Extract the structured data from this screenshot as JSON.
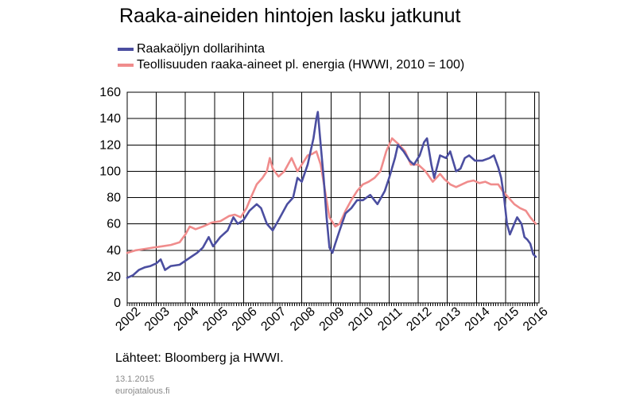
{
  "header": {
    "title": "Raaka-aineiden hintojen lasku jatkunut"
  },
  "legend": {
    "items": [
      {
        "label": "Raakaöljyn dollarihinta",
        "color": "#4b4ea0"
      },
      {
        "label": "Teollisuuden raaka-aineet pl. energia (HWWI, 2010 = 100)",
        "color": "#f08c8c"
      }
    ]
  },
  "footer": {
    "source": "Lähteet: Bloomberg ja HWWI.",
    "date": "13.1.2015",
    "site": "eurojatalous.fi"
  },
  "chart_data": {
    "type": "line",
    "title": "Raaka-aineiden hintojen lasku jatkunut",
    "xlabel": "",
    "ylabel": "",
    "xlim": [
      2002,
      2016.15
    ],
    "ylim": [
      0,
      160
    ],
    "y_ticks": [
      0,
      20,
      40,
      60,
      80,
      100,
      120,
      140,
      160
    ],
    "x_tick_labels": [
      "2002",
      "2003",
      "2004",
      "2005",
      "2006",
      "2007",
      "2008",
      "2009",
      "2010",
      "2011",
      "2012",
      "2013",
      "2014",
      "2015",
      "2016"
    ],
    "grid": true,
    "series": [
      {
        "name": "Raakaöljyn dollarihinta",
        "color": "#4b4ea0",
        "points": [
          [
            2002.0,
            19
          ],
          [
            2002.2,
            21
          ],
          [
            2002.4,
            25
          ],
          [
            2002.6,
            27
          ],
          [
            2002.8,
            28
          ],
          [
            2003.0,
            30
          ],
          [
            2003.15,
            33
          ],
          [
            2003.3,
            25
          ],
          [
            2003.5,
            28
          ],
          [
            2003.8,
            29
          ],
          [
            2004.0,
            32
          ],
          [
            2004.2,
            35
          ],
          [
            2004.4,
            38
          ],
          [
            2004.6,
            42
          ],
          [
            2004.8,
            50
          ],
          [
            2004.95,
            43
          ],
          [
            2005.2,
            50
          ],
          [
            2005.45,
            55
          ],
          [
            2005.65,
            65
          ],
          [
            2005.8,
            60
          ],
          [
            2006.0,
            63
          ],
          [
            2006.2,
            70
          ],
          [
            2006.45,
            75
          ],
          [
            2006.6,
            72
          ],
          [
            2006.8,
            60
          ],
          [
            2007.0,
            55
          ],
          [
            2007.2,
            63
          ],
          [
            2007.5,
            75
          ],
          [
            2007.7,
            80
          ],
          [
            2007.85,
            95
          ],
          [
            2008.0,
            92
          ],
          [
            2008.2,
            105
          ],
          [
            2008.4,
            125
          ],
          [
            2008.5,
            140
          ],
          [
            2008.55,
            145
          ],
          [
            2008.65,
            120
          ],
          [
            2008.75,
            95
          ],
          [
            2008.85,
            65
          ],
          [
            2008.95,
            42
          ],
          [
            2009.05,
            38
          ],
          [
            2009.15,
            45
          ],
          [
            2009.3,
            55
          ],
          [
            2009.5,
            68
          ],
          [
            2009.7,
            72
          ],
          [
            2009.9,
            78
          ],
          [
            2010.1,
            78
          ],
          [
            2010.35,
            82
          ],
          [
            2010.6,
            75
          ],
          [
            2010.85,
            85
          ],
          [
            2011.0,
            95
          ],
          [
            2011.2,
            110
          ],
          [
            2011.3,
            120
          ],
          [
            2011.5,
            115
          ],
          [
            2011.7,
            108
          ],
          [
            2011.85,
            105
          ],
          [
            2012.05,
            112
          ],
          [
            2012.2,
            122
          ],
          [
            2012.3,
            125
          ],
          [
            2012.45,
            105
          ],
          [
            2012.55,
            95
          ],
          [
            2012.75,
            112
          ],
          [
            2012.95,
            110
          ],
          [
            2013.1,
            115
          ],
          [
            2013.3,
            100
          ],
          [
            2013.45,
            102
          ],
          [
            2013.6,
            110
          ],
          [
            2013.75,
            112
          ],
          [
            2013.95,
            108
          ],
          [
            2014.2,
            108
          ],
          [
            2014.45,
            110
          ],
          [
            2014.6,
            112
          ],
          [
            2014.75,
            103
          ],
          [
            2014.85,
            95
          ],
          [
            2014.95,
            80
          ],
          [
            2015.05,
            60
          ],
          [
            2015.15,
            52
          ],
          [
            2015.3,
            60
          ],
          [
            2015.4,
            65
          ],
          [
            2015.55,
            60
          ],
          [
            2015.65,
            50
          ],
          [
            2015.75,
            48
          ],
          [
            2015.85,
            45
          ],
          [
            2015.95,
            37
          ],
          [
            2016.04,
            35
          ]
        ]
      },
      {
        "name": "Teollisuuden raaka-aineet pl. energia (HWWI, 2010 = 100)",
        "color": "#f08c8c",
        "points": [
          [
            2002.0,
            38
          ],
          [
            2002.3,
            40
          ],
          [
            2002.6,
            41
          ],
          [
            2002.9,
            42
          ],
          [
            2003.2,
            43
          ],
          [
            2003.5,
            44
          ],
          [
            2003.8,
            46
          ],
          [
            2004.0,
            52
          ],
          [
            2004.15,
            58
          ],
          [
            2004.35,
            56
          ],
          [
            2004.6,
            58
          ],
          [
            2004.9,
            61
          ],
          [
            2005.2,
            62
          ],
          [
            2005.5,
            66
          ],
          [
            2005.7,
            67
          ],
          [
            2005.9,
            65
          ],
          [
            2006.1,
            72
          ],
          [
            2006.25,
            80
          ],
          [
            2006.45,
            90
          ],
          [
            2006.65,
            95
          ],
          [
            2006.8,
            100
          ],
          [
            2006.9,
            110
          ],
          [
            2007.0,
            102
          ],
          [
            2007.2,
            96
          ],
          [
            2007.4,
            100
          ],
          [
            2007.65,
            110
          ],
          [
            2007.85,
            100
          ],
          [
            2008.0,
            105
          ],
          [
            2008.2,
            112
          ],
          [
            2008.35,
            113
          ],
          [
            2008.5,
            115
          ],
          [
            2008.65,
            105
          ],
          [
            2008.8,
            85
          ],
          [
            2008.95,
            65
          ],
          [
            2009.15,
            58
          ],
          [
            2009.3,
            60
          ],
          [
            2009.5,
            70
          ],
          [
            2009.7,
            78
          ],
          [
            2009.9,
            85
          ],
          [
            2010.1,
            90
          ],
          [
            2010.3,
            92
          ],
          [
            2010.5,
            95
          ],
          [
            2010.7,
            100
          ],
          [
            2010.9,
            115
          ],
          [
            2011.1,
            125
          ],
          [
            2011.2,
            123
          ],
          [
            2011.35,
            120
          ],
          [
            2011.55,
            115
          ],
          [
            2011.75,
            105
          ],
          [
            2012.0,
            105
          ],
          [
            2012.25,
            100
          ],
          [
            2012.5,
            92
          ],
          [
            2012.75,
            98
          ],
          [
            2012.9,
            94
          ],
          [
            2013.1,
            90
          ],
          [
            2013.3,
            88
          ],
          [
            2013.5,
            90
          ],
          [
            2013.7,
            92
          ],
          [
            2013.9,
            93
          ],
          [
            2014.1,
            91
          ],
          [
            2014.3,
            92
          ],
          [
            2014.5,
            90
          ],
          [
            2014.75,
            90
          ],
          [
            2014.9,
            85
          ],
          [
            2015.1,
            80
          ],
          [
            2015.3,
            75
          ],
          [
            2015.5,
            72
          ],
          [
            2015.7,
            70
          ],
          [
            2015.85,
            65
          ],
          [
            2016.04,
            60
          ]
        ]
      }
    ]
  }
}
